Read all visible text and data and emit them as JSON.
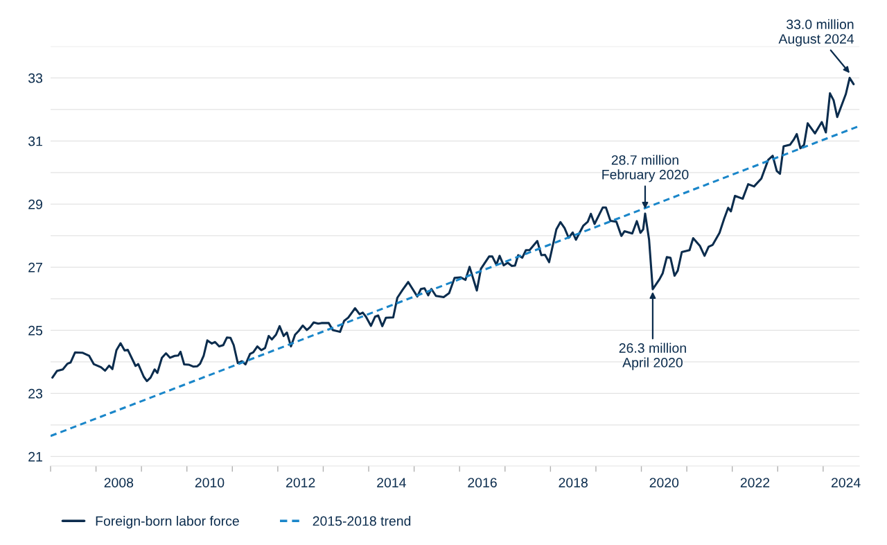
{
  "chart_data": {
    "type": "line",
    "series": [
      {
        "name": "Foreign-born labor force",
        "color": "#0b2c4d",
        "line_style": "solid",
        "x": [
          2007.04,
          2007.14,
          2007.27,
          2007.37,
          2007.44,
          2007.54,
          2007.7,
          2007.85,
          2007.95,
          2008.11,
          2008.2,
          2008.29,
          2008.36,
          2008.45,
          2008.54,
          2008.63,
          2008.7,
          2008.87,
          2008.93,
          2009.05,
          2009.12,
          2009.2,
          2009.29,
          2009.35,
          2009.45,
          2009.54,
          2009.63,
          2009.73,
          2009.81,
          2009.86,
          2009.94,
          2010.04,
          2010.14,
          2010.23,
          2010.29,
          2010.37,
          2010.45,
          2010.55,
          2010.62,
          2010.71,
          2010.8,
          2010.88,
          2010.96,
          2011.03,
          2011.12,
          2011.21,
          2011.29,
          2011.39,
          2011.46,
          2011.55,
          2011.64,
          2011.72,
          2011.8,
          2011.87,
          2011.96,
          2012.04,
          2012.13,
          2012.2,
          2012.29,
          2012.38,
          2012.46,
          2012.55,
          2012.64,
          2012.71,
          2012.79,
          2012.89,
          2012.96,
          2013.12,
          2013.21,
          2013.37,
          2013.46,
          2013.55,
          2013.7,
          2013.8,
          2013.87,
          2013.94,
          2014.05,
          2014.14,
          2014.21,
          2014.3,
          2014.38,
          2014.54,
          2014.63,
          2014.75,
          2014.87,
          2015.07,
          2015.15,
          2015.23,
          2015.31,
          2015.38,
          2015.48,
          2015.65,
          2015.77,
          2015.89,
          2016.02,
          2016.13,
          2016.22,
          2016.38,
          2016.47,
          2016.65,
          2016.72,
          2016.81,
          2016.88,
          2016.97,
          2017.06,
          2017.15,
          2017.22,
          2017.29,
          2017.38,
          2017.46,
          2017.54,
          2017.71,
          2017.8,
          2017.88,
          2017.97,
          2018.13,
          2018.22,
          2018.31,
          2018.4,
          2018.49,
          2018.56,
          2018.72,
          2018.82,
          2018.89,
          2018.97,
          2019.15,
          2019.22,
          2019.32,
          2019.45,
          2019.56,
          2019.63,
          2019.8,
          2019.9,
          2019.98,
          2020.04,
          2020.083,
          2020.17,
          2020.25,
          2020.4,
          2020.47,
          2020.56,
          2020.64,
          2020.73,
          2020.8,
          2020.89,
          2021.06,
          2021.14,
          2021.29,
          2021.39,
          2021.48,
          2021.57,
          2021.72,
          2021.82,
          2021.91,
          2021.97,
          2022.06,
          2022.23,
          2022.35,
          2022.48,
          2022.64,
          2022.79,
          2022.89,
          2022.98,
          2023.05,
          2023.13,
          2023.27,
          2023.36,
          2023.42,
          2023.5,
          2023.58,
          2023.66,
          2023.82,
          2023.97,
          2024.06,
          2024.15,
          2024.23,
          2024.31,
          2024.5,
          2024.583,
          2024.67
        ],
        "values": [
          23.5,
          23.71,
          23.76,
          23.94,
          23.98,
          24.3,
          24.29,
          24.19,
          23.93,
          23.83,
          23.72,
          23.88,
          23.77,
          24.37,
          24.59,
          24.36,
          24.38,
          23.87,
          23.93,
          23.53,
          23.39,
          23.5,
          23.76,
          23.65,
          24.13,
          24.27,
          24.13,
          24.19,
          24.2,
          24.32,
          23.92,
          23.91,
          23.85,
          23.86,
          23.94,
          24.2,
          24.68,
          24.58,
          24.63,
          24.49,
          24.53,
          24.77,
          24.76,
          24.53,
          23.96,
          24.02,
          23.92,
          24.25,
          24.3,
          24.49,
          24.37,
          24.44,
          24.82,
          24.71,
          24.86,
          25.13,
          24.82,
          24.93,
          24.49,
          24.86,
          24.98,
          25.15,
          25.01,
          25.1,
          25.25,
          25.21,
          25.23,
          25.23,
          25.01,
          24.95,
          25.3,
          25.4,
          25.7,
          25.51,
          25.56,
          25.43,
          25.14,
          25.43,
          25.47,
          25.13,
          25.4,
          25.41,
          26.03,
          26.29,
          26.53,
          26.07,
          26.31,
          26.33,
          26.11,
          26.31,
          26.09,
          26.05,
          26.18,
          26.66,
          26.68,
          26.6,
          27.01,
          26.26,
          26.95,
          27.34,
          27.34,
          27.08,
          27.36,
          27.06,
          27.14,
          27.04,
          27.05,
          27.38,
          27.3,
          27.54,
          27.54,
          27.83,
          27.38,
          27.39,
          27.16,
          28.2,
          28.43,
          28.24,
          27.93,
          28.1,
          27.87,
          28.31,
          28.44,
          28.69,
          28.37,
          28.89,
          28.89,
          28.47,
          28.44,
          27.99,
          28.14,
          28.07,
          28.46,
          28.09,
          28.2,
          28.7,
          27.87,
          26.3,
          26.62,
          26.81,
          27.32,
          27.3,
          26.73,
          26.89,
          27.48,
          27.54,
          27.92,
          27.67,
          27.36,
          27.65,
          27.71,
          28.09,
          28.53,
          28.88,
          28.77,
          29.26,
          29.17,
          29.63,
          29.56,
          29.81,
          30.4,
          30.53,
          30.05,
          29.96,
          30.83,
          30.88,
          31.06,
          31.22,
          30.77,
          30.88,
          31.56,
          31.24,
          31.6,
          31.27,
          32.51,
          32.29,
          31.76,
          32.49,
          33.0,
          32.8
        ]
      },
      {
        "name": "2015-2018 trend",
        "color": "#1a86c9",
        "line_style": "dashed",
        "x": [
          2007.0,
          2024.75
        ],
        "values": [
          21.65,
          31.45
        ]
      }
    ],
    "xlim": [
      2007.0,
      2024.8
    ],
    "xticks": [
      {
        "value": 2007,
        "label": null
      },
      {
        "value": 2008,
        "label": null
      },
      {
        "value": 2008.5,
        "label": "2008"
      },
      {
        "value": 2009,
        "label": null
      },
      {
        "value": 2010,
        "label": null
      },
      {
        "value": 2010.5,
        "label": "2010"
      },
      {
        "value": 2011,
        "label": null
      },
      {
        "value": 2012,
        "label": null
      },
      {
        "value": 2012.5,
        "label": "2012"
      },
      {
        "value": 2013,
        "label": null
      },
      {
        "value": 2014,
        "label": null
      },
      {
        "value": 2014.5,
        "label": "2014"
      },
      {
        "value": 2015,
        "label": null
      },
      {
        "value": 2016,
        "label": null
      },
      {
        "value": 2016.5,
        "label": "2016"
      },
      {
        "value": 2017,
        "label": null
      },
      {
        "value": 2018,
        "label": null
      },
      {
        "value": 2018.5,
        "label": "2018"
      },
      {
        "value": 2019,
        "label": null
      },
      {
        "value": 2020,
        "label": null
      },
      {
        "value": 2020.5,
        "label": "2020"
      },
      {
        "value": 2021,
        "label": null
      },
      {
        "value": 2022,
        "label": null
      },
      {
        "value": 2022.5,
        "label": "2022"
      },
      {
        "value": 2023,
        "label": null
      },
      {
        "value": 2024,
        "label": null
      },
      {
        "value": 2024.5,
        "label": "2024"
      }
    ],
    "ylim": [
      20.7,
      34.0
    ],
    "yticks": [
      21,
      {
        "value": 22,
        "label": null
      },
      23,
      {
        "value": 24,
        "label": null
      },
      25,
      {
        "value": 26,
        "label": null
      },
      27,
      {
        "value": 28,
        "label": null
      },
      29,
      {
        "value": 30,
        "label": null
      },
      31,
      {
        "value": 32,
        "label": null
      },
      33,
      {
        "value": 34,
        "label": null
      }
    ],
    "grid": "y",
    "legend": "bottom left",
    "annotations": [
      {
        "text": "28.7 million\nFebruary 2020",
        "x": 2020.083,
        "y": 28.7
      },
      {
        "text": "26.3 million\nApril 2020",
        "x": 2020.25,
        "y": 26.3
      },
      {
        "text": "33.0 million\nAugust 2024",
        "x": 2024.583,
        "y": 33.0
      }
    ]
  }
}
